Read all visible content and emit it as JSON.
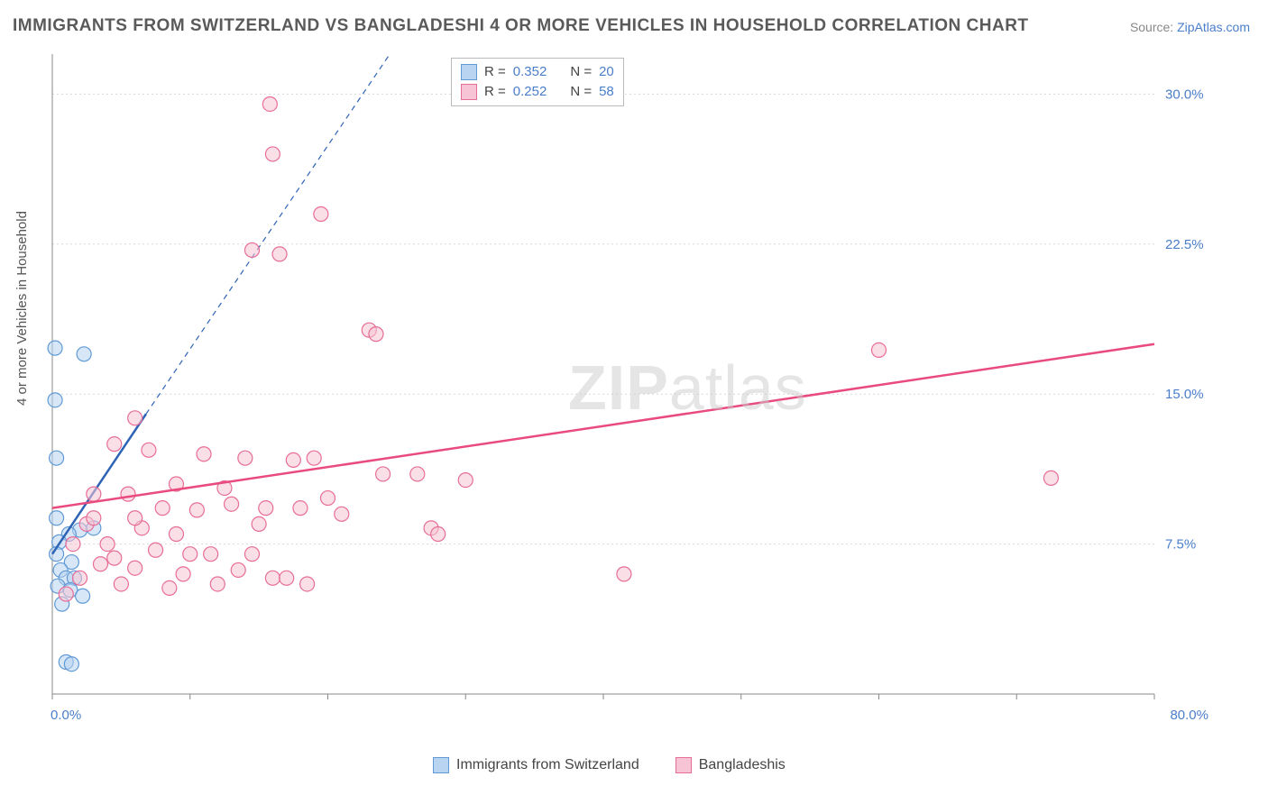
{
  "title": "IMMIGRANTS FROM SWITZERLAND VS BANGLADESHI 4 OR MORE VEHICLES IN HOUSEHOLD CORRELATION CHART",
  "source_label": "Source:",
  "source_link": "ZipAtlas.com",
  "ylabel": "4 or more Vehicles in Household",
  "legend_top": [
    {
      "r_label": "R =",
      "r_value": "0.352",
      "n_label": "N =",
      "n_value": "20",
      "fill": "#b8d4f0",
      "stroke": "#5f9ad6"
    },
    {
      "r_label": "R =",
      "r_value": "0.252",
      "n_label": "N =",
      "n_value": "58",
      "fill": "#f6c4d4",
      "stroke": "#e76d97"
    }
  ],
  "legend_bottom": [
    {
      "label": "Immigrants from Switzerland",
      "fill": "#b8d4f0",
      "stroke": "#5f9ad6"
    },
    {
      "label": "Bangladeshis",
      "fill": "#f6c4d4",
      "stroke": "#e76d97"
    }
  ],
  "watermark": {
    "bold": "ZIP",
    "rest": "atlas"
  },
  "chart": {
    "type": "scatter",
    "xlim": [
      0,
      80
    ],
    "ylim": [
      0,
      32
    ],
    "x_axis_labels": [
      {
        "value": "0.0%",
        "pos": 0
      },
      {
        "value": "80.0%",
        "pos": 80
      }
    ],
    "y_axis_labels": [
      {
        "value": "7.5%",
        "pos": 7.5
      },
      {
        "value": "15.0%",
        "pos": 15
      },
      {
        "value": "22.5%",
        "pos": 22.5
      },
      {
        "value": "30.0%",
        "pos": 30
      }
    ],
    "x_ticks": [
      0,
      10,
      20,
      30,
      40,
      50,
      60,
      70,
      80
    ],
    "y_gridlines": [
      7.5,
      15,
      22.5,
      30
    ],
    "background": "#ffffff",
    "grid_color": "#d8d8d8",
    "axis_color": "#888888",
    "marker_radius": 8,
    "marker_opacity": 0.55,
    "series": [
      {
        "name": "switzerland",
        "fill": "#b8d4f0",
        "stroke": "#5f9ad6",
        "points": [
          [
            0.2,
            17.3
          ],
          [
            2.3,
            17.0
          ],
          [
            0.2,
            14.7
          ],
          [
            0.3,
            11.8
          ],
          [
            0.3,
            8.8
          ],
          [
            2.0,
            8.2
          ],
          [
            1.2,
            8.0
          ],
          [
            0.5,
            7.6
          ],
          [
            0.3,
            7.0
          ],
          [
            1.4,
            6.6
          ],
          [
            0.6,
            6.2
          ],
          [
            1.0,
            5.8
          ],
          [
            1.6,
            5.8
          ],
          [
            0.4,
            5.4
          ],
          [
            1.3,
            5.2
          ],
          [
            2.2,
            4.9
          ],
          [
            0.7,
            4.5
          ],
          [
            1.0,
            1.6
          ],
          [
            1.4,
            1.5
          ],
          [
            3.0,
            8.3
          ]
        ],
        "trend": {
          "solid": {
            "x1": 0,
            "y1": 7.0,
            "x2": 6.8,
            "y2": 14.0
          },
          "dashed": {
            "x1": 6.8,
            "y1": 14.0,
            "x2": 24.5,
            "y2": 32.0
          },
          "color": "#2e64b5",
          "width": 2.5
        }
      },
      {
        "name": "bangladeshis",
        "fill": "#f6c4d4",
        "stroke": "#e76d97",
        "points": [
          [
            15.8,
            29.5
          ],
          [
            16.0,
            27.0
          ],
          [
            19.5,
            24.0
          ],
          [
            14.5,
            22.2
          ],
          [
            16.5,
            22.0
          ],
          [
            23.0,
            18.2
          ],
          [
            23.5,
            18.0
          ],
          [
            60.0,
            17.2
          ],
          [
            6.0,
            13.8
          ],
          [
            72.5,
            10.8
          ],
          [
            26.5,
            11.0
          ],
          [
            4.5,
            12.5
          ],
          [
            7.0,
            12.2
          ],
          [
            11.0,
            12.0
          ],
          [
            14.0,
            11.8
          ],
          [
            17.5,
            11.7
          ],
          [
            19.0,
            11.8
          ],
          [
            24.0,
            11.0
          ],
          [
            30.0,
            10.7
          ],
          [
            3.0,
            10.0
          ],
          [
            5.5,
            10.0
          ],
          [
            8.0,
            9.3
          ],
          [
            10.5,
            9.2
          ],
          [
            13.0,
            9.5
          ],
          [
            15.5,
            9.3
          ],
          [
            18.0,
            9.3
          ],
          [
            21.0,
            9.0
          ],
          [
            2.5,
            8.5
          ],
          [
            6.5,
            8.3
          ],
          [
            9.0,
            8.0
          ],
          [
            27.5,
            8.3
          ],
          [
            28.0,
            8.0
          ],
          [
            1.5,
            7.5
          ],
          [
            4.0,
            7.5
          ],
          [
            7.5,
            7.2
          ],
          [
            11.5,
            7.0
          ],
          [
            14.5,
            7.0
          ],
          [
            3.5,
            6.5
          ],
          [
            6.0,
            6.3
          ],
          [
            9.5,
            6.0
          ],
          [
            13.5,
            6.2
          ],
          [
            16.0,
            5.8
          ],
          [
            18.5,
            5.5
          ],
          [
            2.0,
            5.8
          ],
          [
            5.0,
            5.5
          ],
          [
            8.5,
            5.3
          ],
          [
            12.0,
            5.5
          ],
          [
            41.5,
            6.0
          ],
          [
            1.0,
            5.0
          ],
          [
            4.5,
            6.8
          ],
          [
            10.0,
            7.0
          ],
          [
            15.0,
            8.5
          ],
          [
            17.0,
            5.8
          ],
          [
            3.0,
            8.8
          ],
          [
            6.0,
            8.8
          ],
          [
            9.0,
            10.5
          ],
          [
            12.5,
            10.3
          ],
          [
            20.0,
            9.8
          ]
        ],
        "trend": {
          "solid": {
            "x1": 0,
            "y1": 9.3,
            "x2": 80,
            "y2": 17.5
          },
          "color": "#e94b7e",
          "width": 2.5
        }
      }
    ]
  }
}
